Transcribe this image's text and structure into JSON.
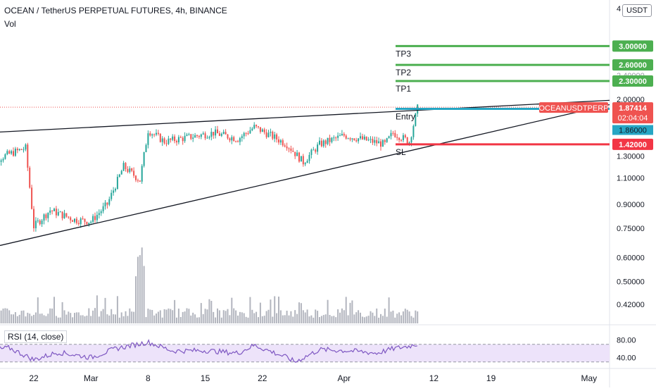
{
  "header": {
    "title": "OCEAN / TetherUS PERPETUAL FUTURES, 4h, BINANCE",
    "vol_label": "Vol",
    "currency": "USDT",
    "rsi_label": "RSI (14, close)"
  },
  "chart_data": {
    "type": "candlestick",
    "symbol": "OCEAN / TetherUS PERPETUAL FUTURES",
    "timeframe": "4h",
    "exchange": "BINANCE",
    "scale": "log",
    "price_axis_ticks": [
      2.0,
      1.3,
      1.1,
      0.9,
      0.75,
      0.6,
      0.5,
      0.42
    ],
    "price_axis_labels": [
      "2.00000",
      "1.30000",
      "1.10000",
      "0.90000",
      "0.75000",
      "0.60000",
      "0.50000",
      "0.42000"
    ],
    "top_partial_tick": "4",
    "partial_hidden_tick": "2.40000",
    "time_axis_labels": [
      "22",
      "Mar",
      "8",
      "15",
      "22",
      "Apr",
      "12",
      "19",
      "May"
    ],
    "current_price": {
      "label": "OCEANUSDTPERP",
      "value": "1.87414",
      "countdown": "02:04:04",
      "color": "#ef5350"
    },
    "horizontal_line_badge": {
      "value": "1.86000",
      "color": "#26a6c4"
    },
    "levels": [
      {
        "name": "TP3",
        "price": 3.0,
        "label": "3.00000",
        "color": "#4caf50"
      },
      {
        "name": "TP2",
        "price": 2.6,
        "label": "2.60000",
        "color": "#4caf50"
      },
      {
        "name": "TP1",
        "price": 2.3,
        "label": "2.30000",
        "color": "#4caf50"
      },
      {
        "name": "Entry",
        "price": 1.86,
        "label": "1.86000",
        "color": "#26a6c4"
      },
      {
        "name": "SL",
        "price": 1.42,
        "label": "1.42000",
        "color": "#f23645"
      }
    ],
    "trendlines": [
      {
        "name": "upper-trendline",
        "points": [
          [
            "Feb 16",
            1.55
          ],
          [
            "May 15",
            2.06
          ]
        ]
      },
      {
        "name": "lower-trendline",
        "points": [
          [
            "Feb 16",
            0.64
          ],
          [
            "May 2",
            1.88
          ]
        ]
      }
    ],
    "price_path": [
      {
        "date": "Feb 16",
        "price": 1.22
      },
      {
        "date": "Feb 19",
        "price": 1.32
      },
      {
        "date": "Feb 21",
        "price": 1.38
      },
      {
        "date": "Feb 22",
        "price": 0.76
      },
      {
        "date": "Feb 24",
        "price": 0.86
      },
      {
        "date": "Feb 27",
        "price": 0.8
      },
      {
        "date": "Mar 1",
        "price": 0.79
      },
      {
        "date": "Mar 3",
        "price": 0.9
      },
      {
        "date": "Mar 5",
        "price": 1.2
      },
      {
        "date": "Mar 7",
        "price": 1.08
      },
      {
        "date": "Mar 8",
        "price": 1.58
      },
      {
        "date": "Mar 10",
        "price": 1.45
      },
      {
        "date": "Mar 13",
        "price": 1.5
      },
      {
        "date": "Mar 16",
        "price": 1.55
      },
      {
        "date": "Mar 19",
        "price": 1.48
      },
      {
        "date": "Mar 21",
        "price": 1.62
      },
      {
        "date": "Mar 23",
        "price": 1.52
      },
      {
        "date": "Mar 25",
        "price": 1.42
      },
      {
        "date": "Mar 27",
        "price": 1.24
      },
      {
        "date": "Mar 29",
        "price": 1.42
      },
      {
        "date": "Apr 1",
        "price": 1.52
      },
      {
        "date": "Apr 3",
        "price": 1.48
      },
      {
        "date": "Apr 6",
        "price": 1.42
      },
      {
        "date": "Apr 7",
        "price": 1.55
      },
      {
        "date": "Apr 9",
        "price": 1.45
      },
      {
        "date": "Apr 10",
        "price": 1.87
      }
    ],
    "volume_axis_max_label": "",
    "rsi": {
      "ylim": [
        20,
        100
      ],
      "levels": [
        70,
        30
      ],
      "axis_labels": [
        "80.00",
        "40.00"
      ],
      "path": [
        {
          "date": "Feb 16",
          "value": 55
        },
        {
          "date": "Feb 19",
          "value": 62
        },
        {
          "date": "Feb 22",
          "value": 35
        },
        {
          "date": "Feb 25",
          "value": 52
        },
        {
          "date": "Mar 1",
          "value": 40
        },
        {
          "date": "Mar 4",
          "value": 60
        },
        {
          "date": "Mar 8",
          "value": 75
        },
        {
          "date": "Mar 11",
          "value": 55
        },
        {
          "date": "Mar 15",
          "value": 56
        },
        {
          "date": "Mar 19",
          "value": 50
        },
        {
          "date": "Mar 21",
          "value": 68
        },
        {
          "date": "Mar 25",
          "value": 40
        },
        {
          "date": "Mar 26",
          "value": 30
        },
        {
          "date": "Mar 29",
          "value": 58
        },
        {
          "date": "Apr 2",
          "value": 55
        },
        {
          "date": "Apr 5",
          "value": 50
        },
        {
          "date": "Apr 7",
          "value": 60
        },
        {
          "date": "Apr 9",
          "value": 66
        },
        {
          "date": "Apr 10",
          "value": 71
        }
      ]
    }
  }
}
